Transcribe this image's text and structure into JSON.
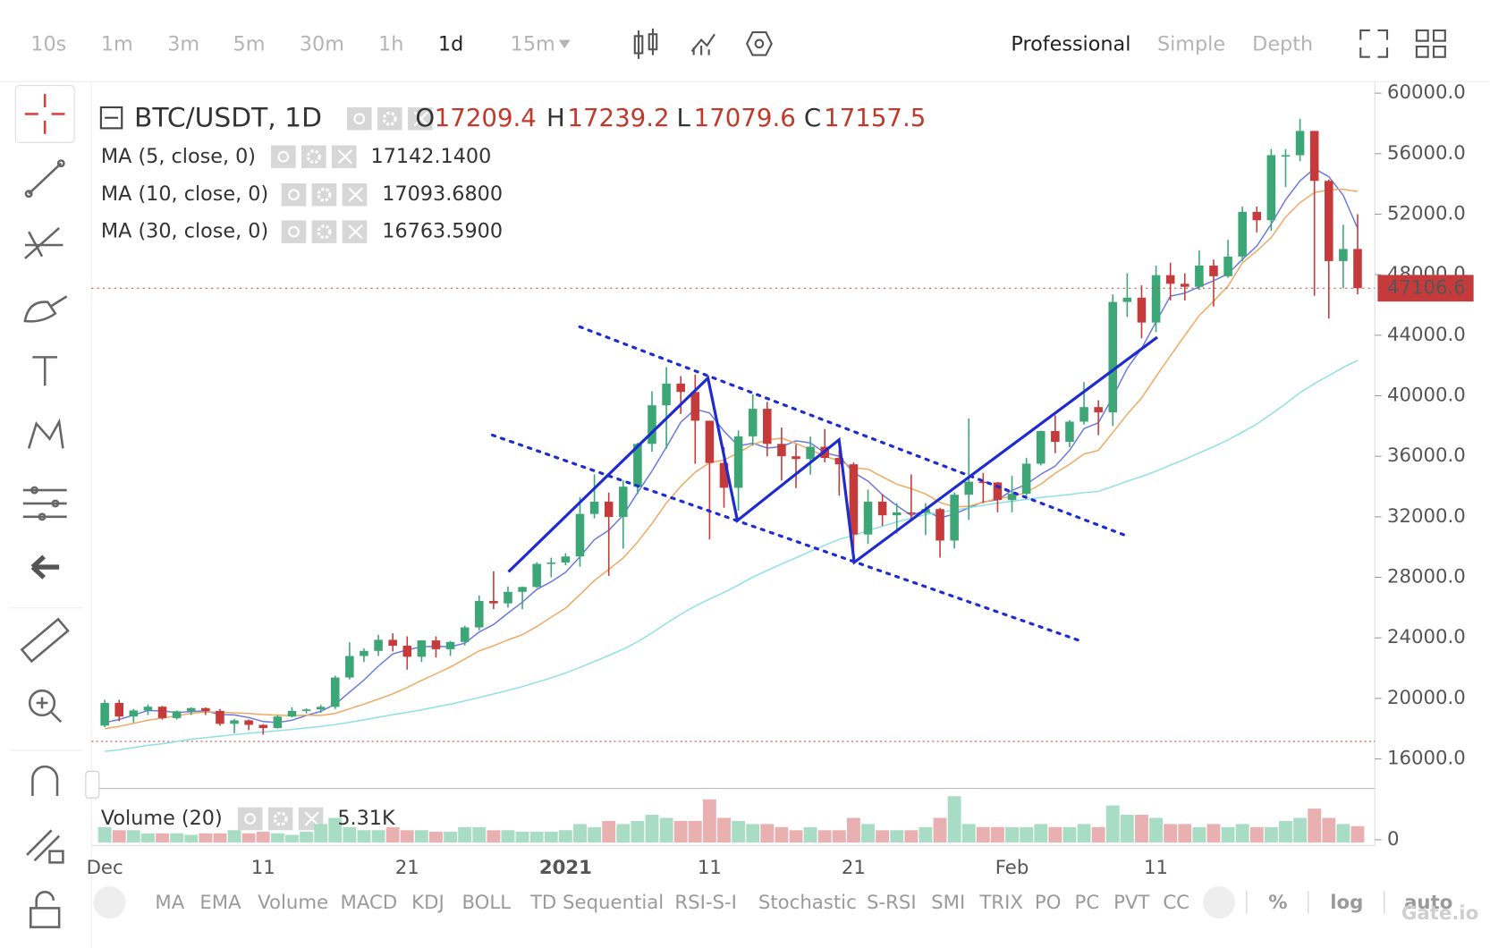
{
  "toolbar": {
    "intervals": [
      "10s",
      "1m",
      "3m",
      "5m",
      "30m",
      "1h",
      "1d",
      "15m"
    ],
    "views": [
      "Professional",
      "Simple",
      "Depth"
    ]
  },
  "indicators": [
    "MA",
    "EMA",
    "Volume",
    "MACD",
    "KDJ",
    "BOLL",
    "TD Sequential",
    "RSI-S-I",
    "Stochastic",
    "S-RSI",
    "SMI",
    "TRIX",
    "PO",
    "PC",
    "PVT",
    "CC",
    "%",
    "log",
    "auto"
  ],
  "brand": "Gate.io",
  "chart_data": {
    "type": "candlestick",
    "title": "BTC/USDT, 1D",
    "ohlc": [
      {
        "name": "O",
        "value": 17209.4
      },
      {
        "name": "H",
        "value": 17239.2
      },
      {
        "name": "L",
        "value": 17079.6
      },
      {
        "name": "C",
        "value": 17157.5
      }
    ],
    "categories": [
      "Dec",
      null,
      null,
      null,
      null,
      null,
      null,
      null,
      null,
      null,
      null,
      "11",
      null,
      null,
      null,
      null,
      null,
      null,
      null,
      null,
      null,
      "21",
      null,
      null,
      null,
      null,
      null,
      null,
      null,
      null,
      null,
      null,
      "2021",
      null,
      null,
      null,
      null,
      null,
      null,
      null,
      null,
      null,
      "11",
      null,
      null,
      null,
      null,
      null,
      null,
      null,
      null,
      null,
      "21",
      null,
      null,
      null,
      null,
      null,
      null,
      null,
      null,
      null,
      null,
      "Feb",
      null,
      null,
      null,
      null,
      null,
      null,
      null,
      null,
      null,
      "11",
      null,
      null,
      null,
      null,
      null,
      null,
      null,
      null,
      null,
      null,
      null,
      null,
      null,
      null
    ],
    "up_color": "#3da676",
    "down_color": "#c53b3b",
    "candles": [
      [
        18200,
        19900,
        18100,
        19700
      ],
      [
        19700,
        19900,
        18500,
        18800
      ],
      [
        18800,
        19300,
        18400,
        19200
      ],
      [
        19200,
        19600,
        18900,
        19450
      ],
      [
        19450,
        19500,
        18600,
        18700
      ],
      [
        18700,
        19200,
        18600,
        19150
      ],
      [
        19150,
        19400,
        18900,
        19360
      ],
      [
        19360,
        19400,
        18900,
        19170
      ],
      [
        19170,
        19300,
        18200,
        18320
      ],
      [
        18320,
        18650,
        17700,
        18550
      ],
      [
        18550,
        18600,
        17900,
        18250
      ],
      [
        18250,
        18300,
        17600,
        18040
      ],
      [
        18040,
        18900,
        18000,
        18800
      ],
      [
        18800,
        19400,
        18750,
        19170
      ],
      [
        19170,
        19350,
        19000,
        19270
      ],
      [
        19270,
        19560,
        19050,
        19440
      ],
      [
        19440,
        21500,
        19300,
        21380
      ],
      [
        21380,
        23700,
        21250,
        22800
      ],
      [
        22800,
        23300,
        22400,
        23140
      ],
      [
        23140,
        24200,
        22800,
        23870
      ],
      [
        23870,
        24300,
        23100,
        23480
      ],
      [
        23480,
        24100,
        21900,
        22750
      ],
      [
        22750,
        23850,
        22400,
        23830
      ],
      [
        23830,
        24100,
        22700,
        23250
      ],
      [
        23250,
        23800,
        22800,
        23730
      ],
      [
        23730,
        24800,
        23500,
        24690
      ],
      [
        24690,
        26800,
        24500,
        26440
      ],
      [
        26440,
        28400,
        25900,
        26280
      ],
      [
        26280,
        27400,
        26000,
        27040
      ],
      [
        27040,
        27400,
        25900,
        27360
      ],
      [
        27360,
        29000,
        27300,
        28890
      ],
      [
        28890,
        29300,
        28000,
        28980
      ],
      [
        28980,
        29600,
        28800,
        29380
      ],
      [
        29380,
        33300,
        28700,
        32190
      ],
      [
        32190,
        34800,
        31900,
        33000
      ],
      [
        33000,
        33600,
        28100,
        31990
      ],
      [
        31990,
        34400,
        29900,
        33990
      ],
      [
        33990,
        36900,
        33500,
        36820
      ],
      [
        36820,
        40300,
        36300,
        39370
      ],
      [
        39370,
        41900,
        36500,
        40800
      ],
      [
        40800,
        41300,
        38800,
        40250
      ],
      [
        40250,
        41400,
        35500,
        38350
      ],
      [
        38350,
        38350,
        30500,
        35560
      ],
      [
        35560,
        36600,
        32600,
        33920
      ],
      [
        33920,
        37700,
        32400,
        37320
      ],
      [
        37320,
        40100,
        36700,
        39140
      ],
      [
        39140,
        39600,
        36000,
        36820
      ],
      [
        36820,
        37900,
        34400,
        36000
      ],
      [
        36000,
        36800,
        33900,
        35820
      ],
      [
        35820,
        37300,
        34800,
        36630
      ],
      [
        36630,
        37800,
        35600,
        35890
      ],
      [
        35890,
        36400,
        33400,
        35470
      ],
      [
        35470,
        35600,
        28900,
        30830
      ],
      [
        30830,
        33800,
        30200,
        33000
      ],
      [
        33000,
        33500,
        31400,
        32100
      ],
      [
        32100,
        32900,
        30900,
        32290
      ],
      [
        32290,
        34800,
        31900,
        32250
      ],
      [
        32250,
        32900,
        30800,
        32510
      ],
      [
        32510,
        32600,
        29300,
        30430
      ],
      [
        30430,
        33600,
        29900,
        33460
      ],
      [
        33460,
        38500,
        31800,
        34320
      ],
      [
        34320,
        34900,
        32900,
        34270
      ],
      [
        34270,
        34300,
        32300,
        33110
      ],
      [
        33110,
        34700,
        32300,
        33520
      ],
      [
        33520,
        35900,
        33400,
        35510
      ],
      [
        35510,
        37700,
        35400,
        37670
      ],
      [
        37670,
        38700,
        36200,
        36950
      ],
      [
        36950,
        38400,
        36600,
        38290
      ],
      [
        38290,
        40900,
        38100,
        39250
      ],
      [
        39250,
        39700,
        37400,
        38900
      ],
      [
        38900,
        46700,
        38000,
        46200
      ],
      [
        46200,
        48100,
        45200,
        46480
      ],
      [
        46480,
        47300,
        43800,
        44840
      ],
      [
        44840,
        48600,
        44200,
        47970
      ],
      [
        47970,
        48800,
        46300,
        47400
      ],
      [
        47400,
        48100,
        46300,
        47200
      ],
      [
        47200,
        49600,
        47000,
        48600
      ],
      [
        48600,
        49000,
        45900,
        47900
      ],
      [
        47900,
        50300,
        47800,
        49200
      ],
      [
        49200,
        52500,
        48900,
        52150
      ],
      [
        52150,
        52500,
        50800,
        51600
      ],
      [
        51600,
        56300,
        50900,
        55900
      ],
      [
        55900,
        56300,
        53800,
        55900
      ],
      [
        55900,
        58300,
        55500,
        57500
      ],
      [
        57500,
        57500,
        46600,
        54200
      ],
      [
        54200,
        54300,
        45100,
        48900
      ],
      [
        48900,
        51300,
        47100,
        49700
      ],
      [
        49700,
        52000,
        46700,
        47106.6
      ]
    ],
    "series": [
      {
        "name": "MA (5, close, 0)",
        "color": "#2335c8",
        "line_color": "#6a78e0",
        "legend_value": {
          "value": 17142.14,
          "label": "17142.1400"
        },
        "values": [
          18400,
          18600,
          18900,
          19200,
          19170,
          19060,
          19130,
          19170,
          18940,
          18910,
          18730,
          18470,
          18400,
          18560,
          18870,
          19140,
          19610,
          20410,
          21210,
          22130,
          22940,
          23210,
          23410,
          23440,
          23410,
          23650,
          24390,
          24880,
          25640,
          26360,
          27200,
          27710,
          28330,
          29360,
          30490,
          31110,
          32110,
          33600,
          35030,
          36600,
          38250,
          39110,
          38860,
          37660,
          36690,
          36860,
          36540,
          36640,
          37020,
          36880,
          36230,
          36000,
          34930,
          34360,
          33460,
          32740,
          32090,
          32430,
          31920,
          32190,
          32590,
          32990,
          33120,
          33740,
          34150,
          34810,
          35350,
          36390,
          37830,
          38210,
          39920,
          41810,
          43130,
          44880,
          46580,
          46780,
          47200,
          47600,
          48060,
          49010,
          49890,
          51350,
          52950,
          54210,
          55020,
          54480,
          53240,
          51060
        ]
      },
      {
        "name": "MA (10, close, 0)",
        "color": "#e8862a",
        "line_color": "#f0a860",
        "legend_value": {
          "value": 17093.68,
          "label": "17093.6800"
        },
        "values": [
          18000,
          18150,
          18350,
          18550,
          18700,
          18850,
          19000,
          19100,
          19100,
          19040,
          19000,
          18930,
          18890,
          18860,
          18890,
          18880,
          19000,
          19310,
          19620,
          19950,
          20300,
          20720,
          21190,
          21630,
          22070,
          22600,
          23140,
          23480,
          23870,
          24210,
          24750,
          25370,
          25960,
          26860,
          27790,
          28520,
          29280,
          30330,
          31560,
          32910,
          34020,
          34950,
          35570,
          35760,
          36220,
          36790,
          37070,
          37210,
          36850,
          36440,
          36000,
          35710,
          35240,
          35150,
          34640,
          34150,
          33860,
          33510,
          32960,
          32650,
          32700,
          32960,
          33210,
          33330,
          33620,
          34160,
          34880,
          35470,
          36150,
          36390,
          37570,
          38780,
          39850,
          41270,
          42640,
          43990,
          45300,
          46250,
          47250,
          48780,
          49570,
          50460,
          51810,
          52760,
          53430,
          53600,
          53650,
          53500
        ]
      },
      {
        "name": "MA (30, close, 0)",
        "color": "#4fd0d8",
        "line_color": "#8ee0e4",
        "legend_value": {
          "value": 16763.59,
          "label": "16763.5900"
        },
        "values": [
          16500,
          16600,
          16750,
          16900,
          17000,
          17150,
          17300,
          17400,
          17500,
          17600,
          17700,
          17780,
          17860,
          17950,
          18050,
          18150,
          18270,
          18420,
          18580,
          18750,
          18920,
          19080,
          19250,
          19430,
          19620,
          19830,
          20060,
          20290,
          20530,
          20780,
          21060,
          21360,
          21680,
          22040,
          22440,
          22830,
          23250,
          23740,
          24330,
          24960,
          25560,
          26100,
          26570,
          27000,
          27490,
          28010,
          28460,
          28880,
          29290,
          29720,
          30120,
          30510,
          30770,
          31100,
          31370,
          31660,
          31910,
          32150,
          32290,
          32430,
          32600,
          32760,
          32900,
          33030,
          33150,
          33280,
          33370,
          33480,
          33600,
          33680,
          34010,
          34350,
          34660,
          35010,
          35420,
          35800,
          36220,
          36640,
          37080,
          37600,
          38130,
          38790,
          39480,
          40210,
          40800,
          41330,
          41870,
          42340
        ]
      }
    ],
    "last_price": 47106.6,
    "last_price_color": "#c53b3b",
    "ylim": [
      14050,
      60630
    ],
    "yticks": [
      {
        "value": 16000,
        "label": "16000.0"
      },
      {
        "value": 20000,
        "label": "20000.0"
      },
      {
        "value": 24000,
        "label": "24000.0"
      },
      {
        "value": 28000,
        "label": "28000.0"
      },
      {
        "value": 32000,
        "label": "32000.0"
      },
      {
        "value": 36000,
        "label": "36000.0"
      },
      {
        "value": 40000,
        "label": "40000.0"
      },
      {
        "value": 44000,
        "label": "44000.0"
      },
      {
        "value": 48000,
        "label": "48000.0"
      },
      {
        "value": 52000,
        "label": "52000.0"
      },
      {
        "value": 56000,
        "label": "56000.0"
      },
      {
        "value": 60000,
        "label": "60000.0"
      }
    ],
    "grid": false,
    "volume": {
      "name": "Volume (20)",
      "legend_value": {
        "value": 5.31,
        "label": "5.31K"
      },
      "ylim": [
        0,
        16
      ],
      "yticks": [
        0
      ],
      "values": [
        5,
        4,
        4,
        3,
        3,
        3,
        2.5,
        3,
        3,
        4,
        3,
        3.5,
        3,
        2.5,
        3.5,
        6,
        8,
        5,
        4,
        4,
        5,
        4,
        4,
        3.5,
        3.5,
        5,
        5,
        4,
        4,
        3.5,
        3.5,
        3.5,
        4,
        6,
        5,
        7,
        6,
        7,
        9,
        8,
        7,
        7,
        14,
        8,
        7,
        6,
        6,
        5,
        4,
        5,
        4,
        4,
        8,
        6,
        4,
        4,
        4,
        5,
        8,
        15,
        6,
        5,
        5,
        5,
        5,
        6,
        5,
        5,
        6,
        5,
        12,
        9,
        9,
        8,
        6,
        6,
        5,
        6,
        5,
        6,
        5,
        5,
        7,
        8,
        11,
        8,
        6,
        5.31
      ]
    }
  }
}
